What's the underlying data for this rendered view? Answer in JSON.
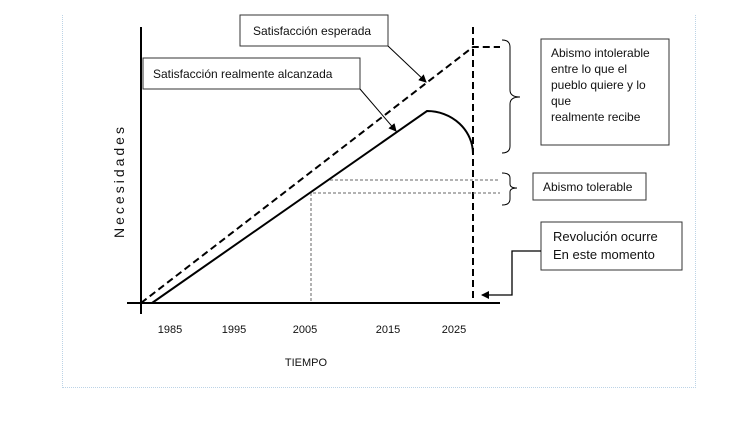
{
  "diagram": {
    "y_axis_label": "Necesidades",
    "x_axis_label": "TIEMPO",
    "x_ticks": [
      "1985",
      "1995",
      "2005",
      "2015",
      "2025"
    ],
    "labels": {
      "expected": "Satisfacción esperada",
      "actual": "Satisfacción realmente alcanzada",
      "intolerable_gap": [
        "Abismo intolerable",
        "entre lo que el",
        "pueblo quiere y lo",
        "que",
        "realmente recibe"
      ],
      "tolerable_gap": "Abismo tolerable",
      "revolution": [
        "Revolución ocurre",
        "En este momento"
      ]
    }
  }
}
